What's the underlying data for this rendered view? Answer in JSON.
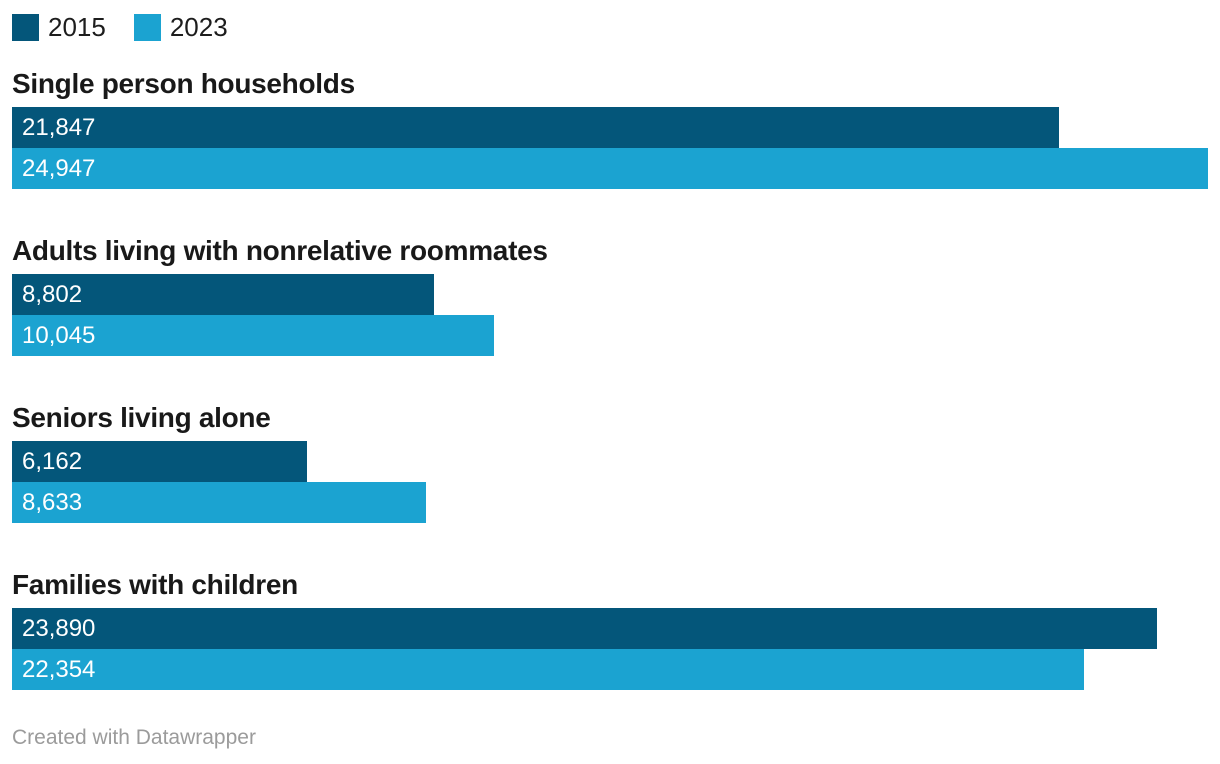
{
  "chart_data": {
    "type": "bar",
    "orientation": "horizontal",
    "grid": false,
    "legend_position": "top-left",
    "value_axis_max": 24947,
    "legend": [
      {
        "label": "2015",
        "color": "#04567a"
      },
      {
        "label": "2023",
        "color": "#1ba3d1"
      }
    ],
    "categories": [
      "Single person households",
      "Adults living with nonrelative roommates",
      "Seniors living alone",
      "Families with children"
    ],
    "groups": [
      {
        "category": "Single person households",
        "series": [
          {
            "name": "2015",
            "value": 21847,
            "label": "21,847"
          },
          {
            "name": "2023",
            "value": 24947,
            "label": "24,947"
          }
        ]
      },
      {
        "category": "Adults living with nonrelative roommates",
        "series": [
          {
            "name": "2015",
            "value": 8802,
            "label": "8,802"
          },
          {
            "name": "2023",
            "value": 10045,
            "label": "10,045"
          }
        ]
      },
      {
        "category": "Seniors living alone",
        "series": [
          {
            "name": "2015",
            "value": 6162,
            "label": "6,162"
          },
          {
            "name": "2023",
            "value": 8633,
            "label": "8,633"
          }
        ]
      },
      {
        "category": "Families with children",
        "series": [
          {
            "name": "2015",
            "value": 23890,
            "label": "23,890"
          },
          {
            "name": "2023",
            "value": 22354,
            "label": "22,354"
          }
        ]
      }
    ]
  },
  "footer": {
    "credit": "Created with Datawrapper"
  }
}
